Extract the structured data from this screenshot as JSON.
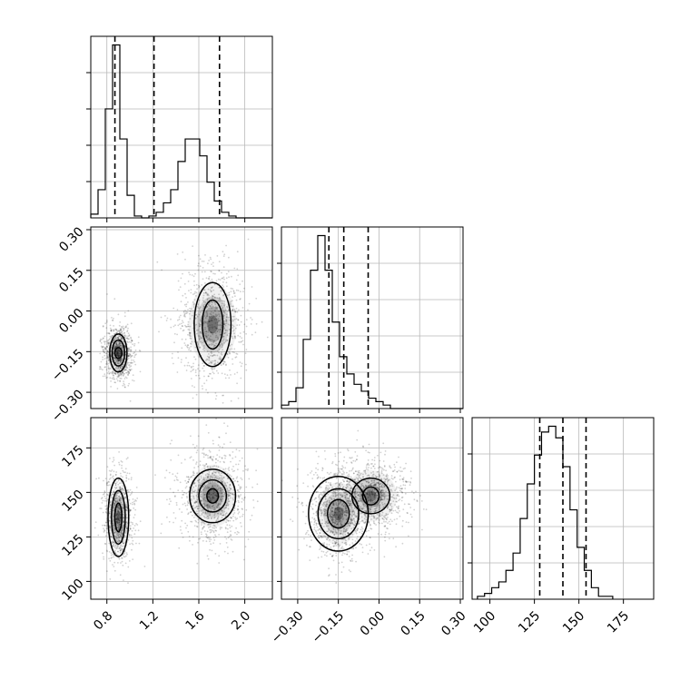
{
  "chart_data": {
    "type": "corner",
    "title": "",
    "parameters": [
      {
        "label": "",
        "range": [
          0.66,
          2.24
        ],
        "ticks": [
          0.8,
          1.2,
          1.6,
          2.0
        ],
        "tick_labels": [
          "0.8",
          "1.2",
          "1.6",
          "2.0"
        ],
        "quantiles": [
          0.87,
          1.21,
          1.78
        ],
        "histogram": {
          "bin_start": 0.66,
          "bin_width": 0.0632,
          "counts": [
            2,
            15,
            58,
            92,
            42,
            12,
            1,
            0,
            1,
            3,
            8,
            15,
            30,
            42,
            42,
            33,
            19,
            9,
            3,
            1,
            0,
            0,
            0,
            0,
            0
          ]
        }
      },
      {
        "label": "",
        "range": [
          -0.36,
          0.31
        ],
        "ticks": [
          -0.3,
          -0.15,
          0.0,
          0.15,
          0.3
        ],
        "tick_labels": [
          "−0.30",
          "−0.15",
          "0.00",
          "0.15",
          "0.30"
        ],
        "quantiles": [
          -0.185,
          -0.13,
          -0.04
        ],
        "histogram": {
          "bin_start": -0.36,
          "bin_width": 0.0268,
          "counts": [
            1,
            2,
            6,
            20,
            40,
            50,
            40,
            25,
            15,
            10,
            7,
            5,
            3,
            2,
            1,
            0,
            0,
            0,
            0,
            0,
            0,
            0,
            0,
            0,
            0
          ]
        }
      },
      {
        "label": "",
        "range": [
          90,
          192
        ],
        "ticks": [
          100,
          125,
          150,
          175
        ],
        "tick_labels": [
          "100",
          "125",
          "150",
          "175"
        ],
        "quantiles": [
          128,
          141,
          154
        ],
        "histogram": {
          "bin_start": 93,
          "bin_width": 4,
          "counts": [
            1,
            2,
            4,
            6,
            10,
            16,
            28,
            40,
            50,
            58,
            60,
            56,
            46,
            31,
            18,
            10,
            4,
            1,
            1
          ]
        }
      }
    ],
    "scatter_2d": [
      {
        "x_param": 0,
        "y_param": 1,
        "clusters": [
          {
            "center": [
              0.9,
              -0.155
            ],
            "spread": [
              0.055,
              0.045
            ],
            "contours": [
              [
                0.03,
                0.02
              ],
              [
                0.055,
                0.048
              ],
              [
                0.075,
                0.07
              ]
            ]
          },
          {
            "center": [
              1.72,
              -0.05
            ],
            "spread": [
              0.13,
              0.095
            ],
            "contours": [
              [
                0.09,
                0.09
              ],
              [
                0.16,
                0.155
              ]
            ]
          }
        ]
      },
      {
        "x_param": 0,
        "y_param": 2,
        "clusters": [
          {
            "center": [
              0.9,
              136
            ],
            "spread": [
              0.055,
              11
            ],
            "contours": [
              [
                0.03,
                8
              ],
              [
                0.06,
                15
              ],
              [
                0.09,
                22
              ]
            ]
          },
          {
            "center": [
              1.72,
              148
            ],
            "spread": [
              0.13,
              11
            ],
            "contours": [
              [
                0.05,
                4
              ],
              [
                0.12,
                9
              ],
              [
                0.2,
                15
              ]
            ]
          }
        ]
      },
      {
        "x_param": 1,
        "y_param": 2,
        "clusters": [
          {
            "center": [
              -0.15,
              138
            ],
            "spread": [
              0.05,
              11
            ],
            "contours": [
              [
                0.04,
                8
              ],
              [
                0.075,
                14
              ],
              [
                0.11,
                21
              ]
            ]
          },
          {
            "center": [
              -0.03,
              148
            ],
            "spread": [
              0.06,
              9
            ],
            "contours": [
              [
                0.03,
                5
              ],
              [
                0.07,
                10
              ]
            ]
          }
        ]
      }
    ],
    "quantile_style": "dashed",
    "grid": true
  }
}
